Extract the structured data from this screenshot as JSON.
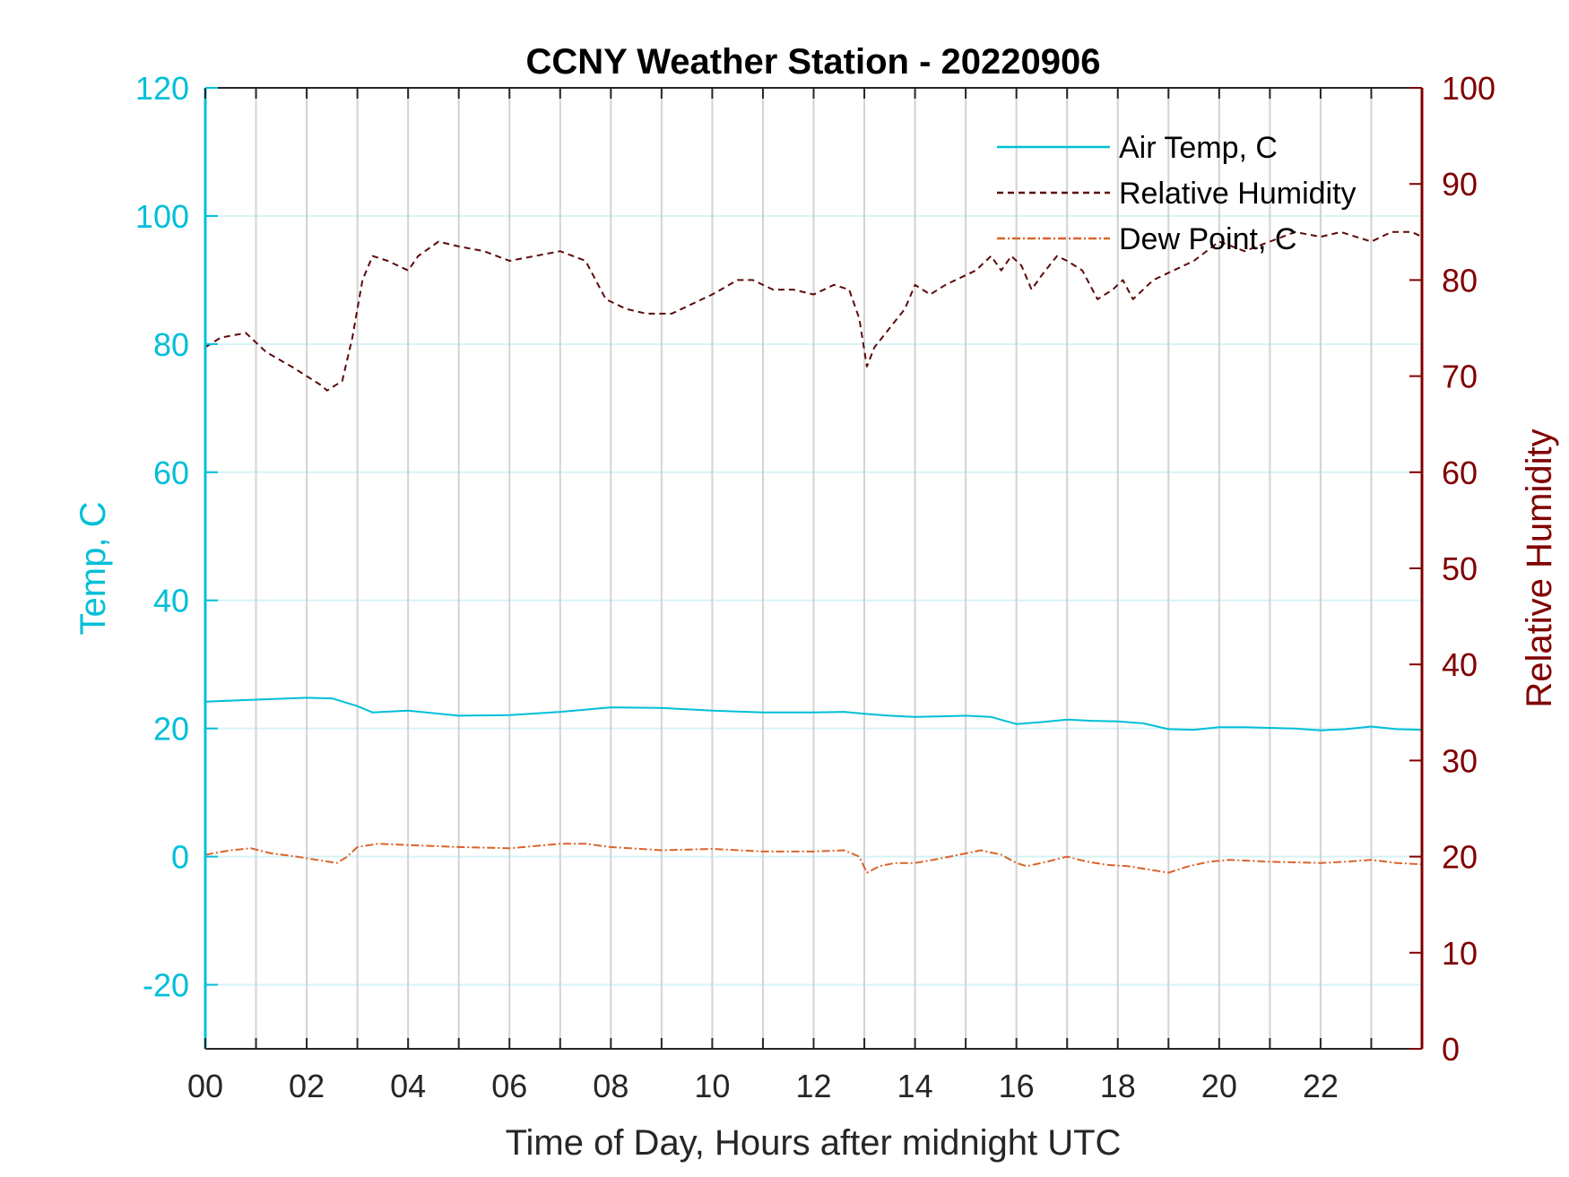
{
  "chart_data": {
    "type": "line",
    "title": "CCNY Weather Station - 20220906",
    "xlabel": "Time of Day, Hours after midnight UTC",
    "ylabel_left": "Temp, C",
    "ylabel_right": "Relative Humidity",
    "xlim": [
      0,
      24
    ],
    "ylim_left": [
      -30,
      120
    ],
    "ylim_right": [
      0,
      100
    ],
    "x_ticks": [
      0,
      2,
      4,
      6,
      8,
      10,
      12,
      14,
      16,
      18,
      20,
      22
    ],
    "x_tick_labels": [
      "00",
      "02",
      "04",
      "06",
      "08",
      "10",
      "12",
      "14",
      "16",
      "18",
      "20",
      "22"
    ],
    "y_left_ticks": [
      -20,
      0,
      20,
      40,
      60,
      80,
      100,
      120
    ],
    "y_left_tick_labels": [
      "-20",
      "0",
      "20",
      "40",
      "60",
      "80",
      "100",
      "120"
    ],
    "y_right_ticks": [
      0,
      10,
      20,
      30,
      40,
      50,
      60,
      70,
      80,
      90,
      100
    ],
    "y_right_tick_labels": [
      "0",
      "10",
      "20",
      "30",
      "40",
      "50",
      "60",
      "70",
      "80",
      "90",
      "100"
    ],
    "grid": {
      "x_major_every_hours": 1,
      "y_left_major": true
    },
    "legend_placement": "top-right",
    "colors": {
      "air_temp": "#00bfd8",
      "relative_humidity": "#5c0a0a",
      "dew_point": "#d9642b",
      "left_axis": "#00bfd8",
      "right_axis": "#800000",
      "x_grid": "#d3d3d3",
      "y_grid": "#d6f3f7"
    },
    "series": [
      {
        "name": "Air Temp, C",
        "axis": "left",
        "style": "solid",
        "x": [
          0,
          1,
          2,
          2.5,
          3,
          3.3,
          4,
          5,
          6,
          7,
          8,
          9,
          10,
          11,
          12,
          12.6,
          13,
          13.5,
          14,
          14.5,
          15,
          15.5,
          16,
          16.5,
          17,
          17.5,
          18,
          18.5,
          19,
          19.5,
          20,
          20.5,
          21,
          21.5,
          22,
          22.5,
          23,
          23.5,
          24
        ],
        "y": [
          24.2,
          24.5,
          24.8,
          24.7,
          23.5,
          22.5,
          22.8,
          22.0,
          22.1,
          22.6,
          23.3,
          23.2,
          22.8,
          22.5,
          22.5,
          22.6,
          22.3,
          22.0,
          21.8,
          21.9,
          22.0,
          21.8,
          20.7,
          21.0,
          21.4,
          21.2,
          21.1,
          20.8,
          19.9,
          19.8,
          20.2,
          20.2,
          20.1,
          20.0,
          19.7,
          19.9,
          20.3,
          19.9,
          19.8
        ]
      },
      {
        "name": "Relative Humidity",
        "axis": "right",
        "style": "dashed",
        "x": [
          0,
          0.3,
          0.8,
          1.2,
          1.7,
          2.0,
          2.3,
          2.4,
          2.7,
          2.9,
          3.1,
          3.3,
          3.6,
          4.0,
          4.2,
          4.6,
          5.0,
          5.5,
          6.0,
          6.5,
          7.0,
          7.5,
          7.9,
          8.3,
          8.7,
          9.2,
          9.6,
          10.0,
          10.5,
          10.8,
          11.2,
          11.6,
          12.0,
          12.4,
          12.7,
          12.9,
          13.05,
          13.2,
          13.5,
          13.8,
          14.0,
          14.3,
          14.6,
          15.0,
          15.2,
          15.5,
          15.7,
          15.9,
          16.1,
          16.3,
          16.5,
          16.8,
          17.0,
          17.3,
          17.6,
          17.9,
          18.1,
          18.3,
          18.7,
          19.1,
          19.5,
          20.0,
          20.5,
          21.0,
          21.5,
          22.0,
          22.4,
          22.7,
          23.0,
          23.4,
          23.8,
          24.0
        ],
        "y": [
          73,
          74,
          74.5,
          72.5,
          71,
          70,
          69,
          68.5,
          69.5,
          74,
          80,
          82.5,
          82,
          81,
          82.5,
          84,
          83.5,
          83,
          82,
          82.5,
          83,
          82,
          78,
          77,
          76.5,
          76.5,
          77.5,
          78.5,
          80,
          80,
          79,
          79,
          78.5,
          79.5,
          79,
          76,
          71,
          73,
          75,
          77,
          79.5,
          78.5,
          79.5,
          80.5,
          81,
          82.5,
          81,
          82.5,
          81.5,
          79,
          80.5,
          82.5,
          82,
          81,
          78,
          79,
          80,
          78,
          80,
          81,
          82,
          84,
          83,
          84,
          85,
          84.5,
          85,
          84.5,
          84,
          85,
          85,
          84.5
        ]
      },
      {
        "name": "Dew Point, C",
        "axis": "left",
        "style": "dashdot",
        "x": [
          0,
          0.5,
          0.9,
          1.3,
          1.8,
          2.2,
          2.6,
          2.8,
          3.0,
          3.4,
          4.0,
          5.0,
          6.0,
          7.0,
          7.5,
          8.0,
          9.0,
          10.0,
          11.0,
          12.0,
          12.6,
          12.9,
          13.05,
          13.3,
          13.6,
          14.0,
          14.5,
          15.0,
          15.3,
          15.7,
          16.0,
          16.2,
          16.6,
          17.0,
          17.4,
          17.8,
          18.2,
          18.6,
          19.0,
          19.4,
          19.8,
          20.2,
          21.0,
          22.0,
          22.5,
          23.0,
          23.5,
          24.0
        ],
        "y": [
          0.3,
          1.0,
          1.3,
          0.5,
          0.0,
          -0.5,
          -1.0,
          0.0,
          1.5,
          2.0,
          1.8,
          1.5,
          1.3,
          2.0,
          2.0,
          1.5,
          1.0,
          1.2,
          0.8,
          0.8,
          1.0,
          0.0,
          -2.5,
          -1.5,
          -1.0,
          -1.0,
          -0.3,
          0.5,
          1.0,
          0.3,
          -1.0,
          -1.5,
          -0.8,
          0.0,
          -0.8,
          -1.3,
          -1.5,
          -2.0,
          -2.5,
          -1.5,
          -0.8,
          -0.5,
          -0.8,
          -1.0,
          -0.8,
          -0.5,
          -1.0,
          -1.2
        ]
      }
    ]
  }
}
